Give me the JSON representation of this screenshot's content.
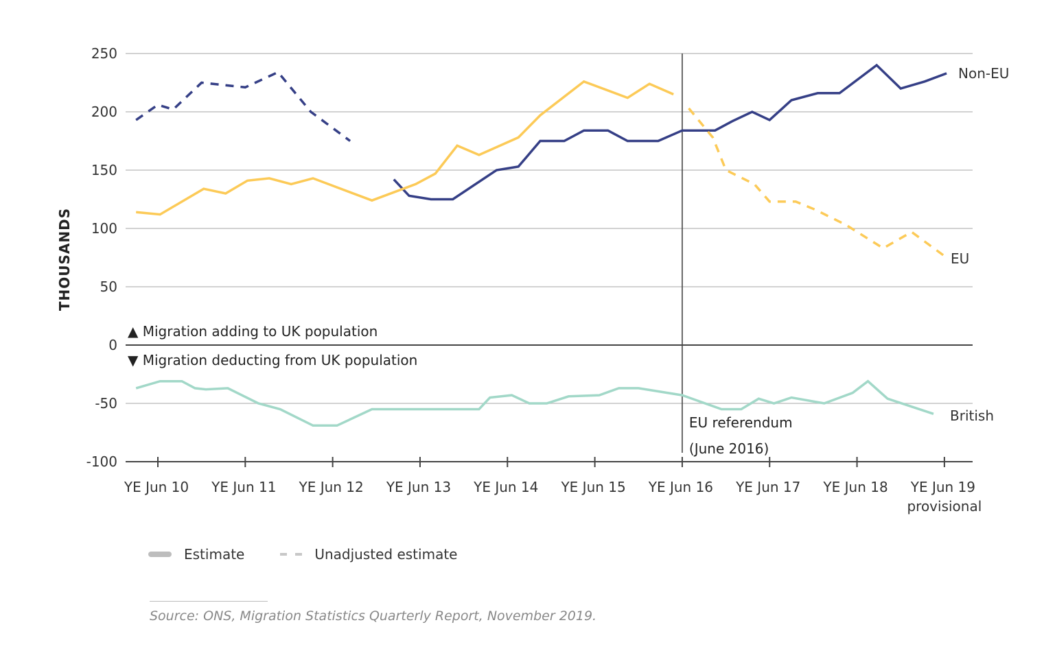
{
  "chart_data": {
    "type": "line",
    "title": "",
    "ylabel": "THOUSANDS",
    "xlabel": "",
    "ylim": [
      -100,
      250
    ],
    "yticks": [
      250,
      200,
      150,
      100,
      50,
      0,
      -50,
      -100
    ],
    "ytick_labels": [
      "250",
      "200",
      "150",
      "100",
      "50",
      "0",
      "-50",
      "-100"
    ],
    "x_unit": "quarter index relative to YE Jun 10 (0 = YE Jun 10, 4 = YE Jun 11, ...)",
    "xlim": [
      -1.3,
      37.3
    ],
    "xticks": [
      {
        "index": 0,
        "label": "YE Jun 10"
      },
      {
        "index": 4,
        "label": "YE Jun 11"
      },
      {
        "index": 8,
        "label": "YE Jun 12"
      },
      {
        "index": 12,
        "label": "YE Jun 13"
      },
      {
        "index": 16,
        "label": "YE Jun 14"
      },
      {
        "index": 20,
        "label": "YE Jun 15"
      },
      {
        "index": 24,
        "label": "YE Jun 16"
      },
      {
        "index": 28,
        "label": "YE Jun 17"
      },
      {
        "index": 32,
        "label": "YE Jun 18"
      },
      {
        "index": 36,
        "label": "YE Jun 19",
        "sublabel": "provisional"
      }
    ],
    "grid": true,
    "series": [
      {
        "name": "Non-EU",
        "segment": "unadjusted",
        "style": "dashed",
        "color": "#353f86",
        "points": [
          [
            -1,
            193
          ],
          [
            0,
            206
          ],
          [
            0.7,
            202
          ],
          [
            2,
            225
          ],
          [
            4,
            221
          ],
          [
            5.5,
            234
          ],
          [
            7,
            200
          ],
          [
            8.8,
            175
          ]
        ]
      },
      {
        "name": "Non-EU",
        "segment": "estimate",
        "style": "solid",
        "color": "#353f86",
        "points": [
          [
            10.8,
            142
          ],
          [
            11.5,
            128
          ],
          [
            12.5,
            125
          ],
          [
            13.5,
            125
          ],
          [
            15.5,
            150
          ],
          [
            16.5,
            153
          ],
          [
            17.5,
            175
          ],
          [
            18.6,
            175
          ],
          [
            19.5,
            184
          ],
          [
            20.6,
            184
          ],
          [
            21.5,
            175
          ],
          [
            22.9,
            175
          ],
          [
            24,
            184
          ],
          [
            25.5,
            184
          ],
          [
            26.3,
            192
          ],
          [
            27.2,
            200
          ],
          [
            28,
            193
          ],
          [
            29,
            210
          ],
          [
            30.2,
            216
          ],
          [
            31.2,
            216
          ],
          [
            32.9,
            240
          ],
          [
            34,
            220
          ],
          [
            35.1,
            226
          ],
          [
            36.1,
            233
          ]
        ]
      },
      {
        "name": "EU",
        "segment": "estimate",
        "style": "solid",
        "color": "#fcca57",
        "points": [
          [
            -1,
            114
          ],
          [
            0.1,
            112
          ],
          [
            2.1,
            134
          ],
          [
            3.1,
            130
          ],
          [
            4.1,
            141
          ],
          [
            5.1,
            143
          ],
          [
            6.1,
            138
          ],
          [
            7.1,
            143
          ],
          [
            9.8,
            124
          ],
          [
            11.8,
            138
          ],
          [
            12.7,
            147
          ],
          [
            13.7,
            171
          ],
          [
            14.7,
            163
          ],
          [
            16.5,
            178
          ],
          [
            17.5,
            197
          ],
          [
            19.5,
            226
          ],
          [
            21.5,
            212
          ],
          [
            22.5,
            224
          ],
          [
            23.6,
            215
          ]
        ]
      },
      {
        "name": "EU",
        "segment": "unadjusted",
        "style": "dashed",
        "color": "#fcca57",
        "points": [
          [
            24.3,
            203
          ],
          [
            25.4,
            178
          ],
          [
            26,
            150
          ],
          [
            27.3,
            138
          ],
          [
            28,
            123
          ],
          [
            29.2,
            123
          ],
          [
            30.1,
            116
          ],
          [
            31.5,
            103
          ],
          [
            33.2,
            83
          ],
          [
            34.5,
            97
          ],
          [
            36.1,
            75
          ]
        ]
      },
      {
        "name": "British",
        "segment": "estimate",
        "style": "solid",
        "color": "#a2d8c8",
        "points": [
          [
            -1,
            -37
          ],
          [
            0.1,
            -31
          ],
          [
            1.1,
            -31
          ],
          [
            1.7,
            -37
          ],
          [
            2.2,
            -38
          ],
          [
            3.2,
            -37
          ],
          [
            4.6,
            -50
          ],
          [
            5.6,
            -55
          ],
          [
            7.1,
            -69
          ],
          [
            8.2,
            -69
          ],
          [
            9.8,
            -55
          ],
          [
            10.8,
            -55
          ],
          [
            12.6,
            -55
          ],
          [
            14.7,
            -55
          ],
          [
            15.2,
            -45
          ],
          [
            16.2,
            -43
          ],
          [
            17,
            -50
          ],
          [
            17.8,
            -50
          ],
          [
            18.8,
            -44
          ],
          [
            20.2,
            -43
          ],
          [
            21.1,
            -37
          ],
          [
            22,
            -37
          ],
          [
            24,
            -43
          ],
          [
            25.8,
            -55
          ],
          [
            26.7,
            -55
          ],
          [
            27.5,
            -46
          ],
          [
            28.2,
            -50
          ],
          [
            29,
            -45
          ],
          [
            30.5,
            -50
          ],
          [
            31.8,
            -41
          ],
          [
            32.5,
            -31
          ],
          [
            33.4,
            -46
          ],
          [
            35.5,
            -59
          ]
        ]
      }
    ],
    "series_labels": [
      {
        "text": "Non-EU",
        "color": "#353f86"
      },
      {
        "text": "EU",
        "color": "#fcca57"
      },
      {
        "text": "British",
        "color": "#a2d8c8"
      }
    ],
    "annotations": {
      "referendum_index": 24,
      "referendum_line1": "EU referendum",
      "referendum_line2": "(June 2016)",
      "above_zero": "▲  Migration adding to UK population",
      "below_zero": "▼  Migration deducting from UK population"
    },
    "legend": {
      "placement": "bottom-left",
      "items": [
        {
          "label": "Estimate",
          "style": "solid"
        },
        {
          "label": "Unadjusted estimate",
          "style": "dashed"
        }
      ]
    },
    "source": "Source: ONS, Migration Statistics Quarterly Report, November 2019."
  }
}
